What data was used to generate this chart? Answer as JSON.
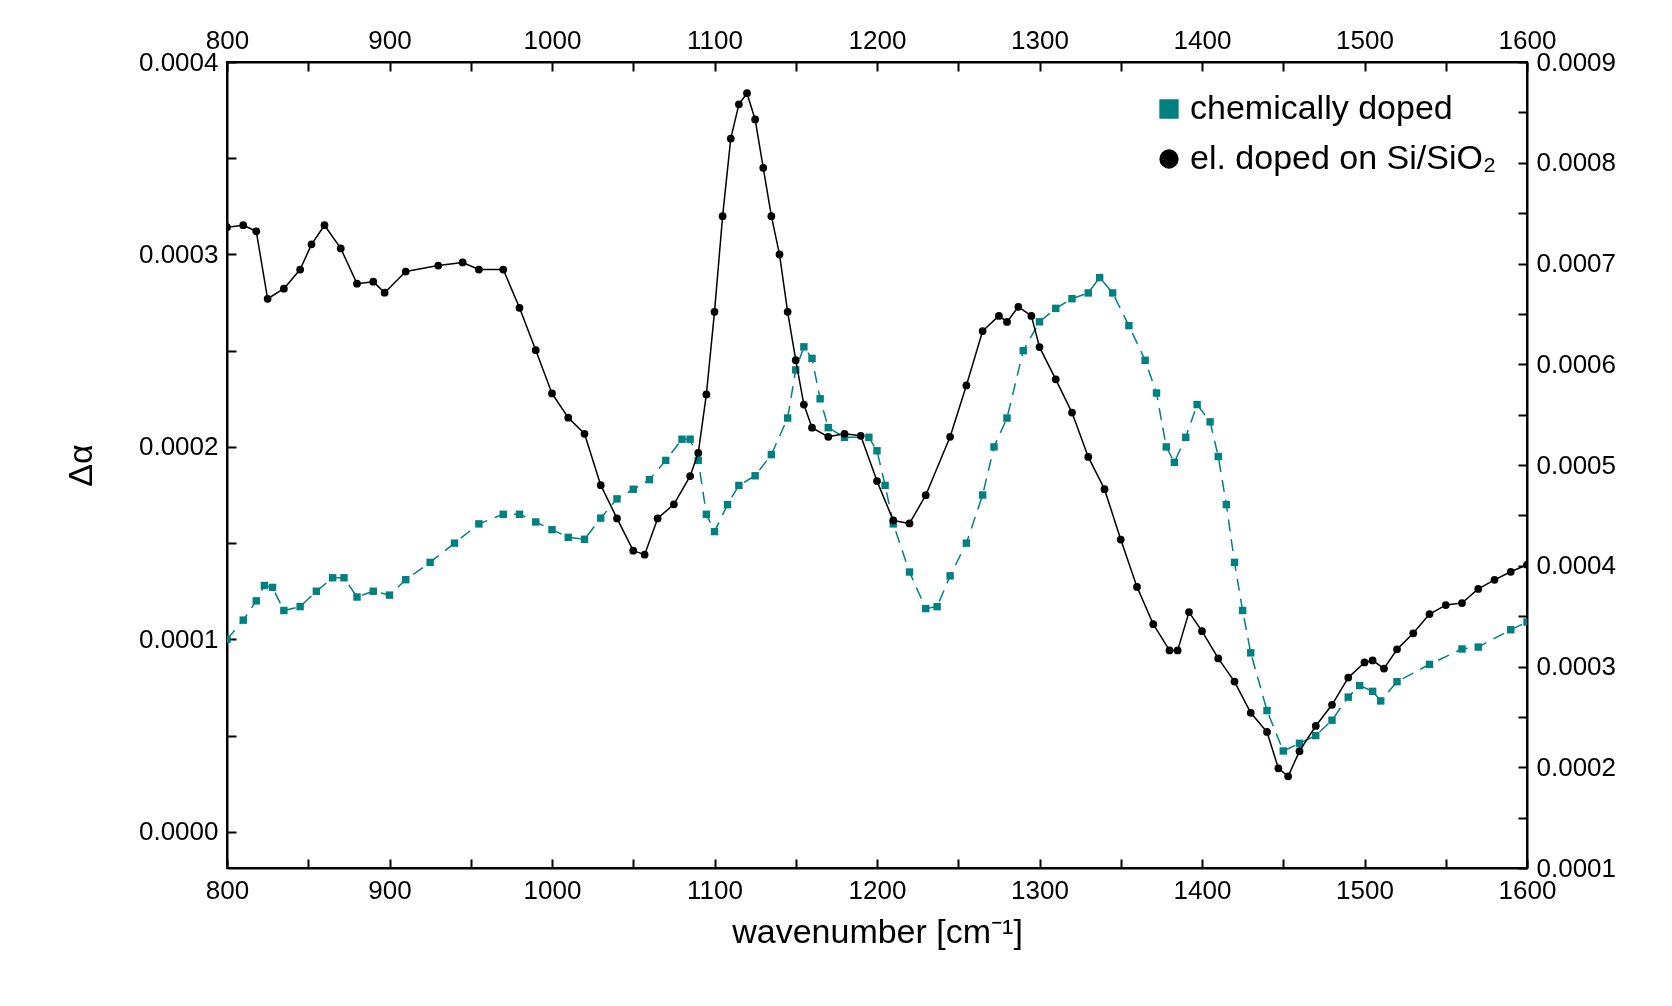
{
  "chart_data": {
    "type": "line",
    "xlabel": "wavenumber [cm⁻¹]",
    "ylabel": "Δα",
    "xlim": [
      800,
      1600
    ],
    "xticks": [
      800,
      {
        "value": 850,
        "label": null
      },
      900,
      {
        "value": 950,
        "label": null
      },
      1000,
      {
        "value": 1050,
        "label": null
      },
      1100,
      {
        "value": 1150,
        "label": null
      },
      1200,
      {
        "value": 1250,
        "label": null
      },
      1300,
      {
        "value": 1350,
        "label": null
      },
      1400,
      {
        "value": 1450,
        "label": null
      },
      1500,
      {
        "value": 1550,
        "label": null
      },
      1600
    ],
    "x2lim": [
      800,
      1600
    ],
    "x2ticks": [
      800,
      {
        "value": 850,
        "label": null
      },
      900,
      {
        "value": 950,
        "label": null
      },
      1000,
      {
        "value": 1050,
        "label": null
      },
      1100,
      {
        "value": 1150,
        "label": null
      },
      1200,
      {
        "value": 1250,
        "label": null
      },
      1300,
      {
        "value": 1350,
        "label": null
      },
      1400,
      {
        "value": 1450,
        "label": null
      },
      1500,
      {
        "value": 1550,
        "label": null
      },
      1600
    ],
    "ylim": [
      -1.88e-05,
      0.0004
    ],
    "yticks": [
      {
        "value": 0,
        "label": "0.0000"
      },
      {
        "value": 5e-05,
        "label": null
      },
      0.0001,
      {
        "value": 0.00015,
        "label": null
      },
      0.0002,
      {
        "value": 0.00025,
        "label": null
      },
      0.0003,
      {
        "value": 0.00035,
        "label": null
      },
      0.0004
    ],
    "y2lim": [
      0.0001,
      0.0009
    ],
    "y2ticks": [
      0.0001,
      {
        "value": 0.00015,
        "label": null
      },
      0.0002,
      {
        "value": 0.00025,
        "label": null
      },
      0.0003,
      {
        "value": 0.00035,
        "label": null
      },
      0.0004,
      {
        "value": 0.00045,
        "label": null
      },
      0.0005,
      {
        "value": 0.00055,
        "label": null
      },
      0.0006,
      {
        "value": 0.00065,
        "label": null
      },
      0.0007,
      {
        "value": 0.00075,
        "label": null
      },
      0.0008,
      {
        "value": 0.00085,
        "label": null
      },
      0.0009
    ],
    "legend": "top right",
    "grid": false,
    "series": [
      {
        "name": "chemically doped",
        "color": "#008080",
        "marker": "square",
        "line_style": "dashed",
        "x": [
          800,
          810,
          818,
          823,
          828,
          835,
          845,
          855,
          865,
          872,
          880,
          890,
          900,
          910,
          925,
          940,
          955,
          970,
          980,
          990,
          1000,
          1010,
          1020,
          1030,
          1040,
          1050,
          1060,
          1070,
          1080,
          1085,
          1090,
          1095,
          1100,
          1108,
          1115,
          1125,
          1135,
          1145,
          1150,
          1155,
          1160,
          1165,
          1170,
          1180,
          1195,
          1200,
          1205,
          1210,
          1220,
          1230,
          1237,
          1245,
          1255,
          1265,
          1272,
          1280,
          1290,
          1300,
          1310,
          1320,
          1330,
          1337,
          1345,
          1355,
          1365,
          1372,
          1378,
          1383,
          1390,
          1397,
          1405,
          1410,
          1415,
          1420,
          1425,
          1430,
          1440,
          1450,
          1460,
          1470,
          1480,
          1490,
          1497,
          1505,
          1510,
          1520,
          1540,
          1560,
          1570,
          1590,
          1600
        ],
        "values": [
          0.0001,
          0.00011,
          0.00012,
          0.000128,
          0.000127,
          0.000115,
          0.000117,
          0.000125,
          0.000132,
          0.000132,
          0.000122,
          0.000125,
          0.000123,
          0.000131,
          0.00014,
          0.00015,
          0.00016,
          0.000165,
          0.000165,
          0.000161,
          0.000157,
          0.000153,
          0.000152,
          0.000163,
          0.000173,
          0.000178,
          0.000183,
          0.000193,
          0.000204,
          0.000204,
          0.000193,
          0.000165,
          0.000156,
          0.00017,
          0.00018,
          0.000185,
          0.000196,
          0.000215,
          0.00024,
          0.000252,
          0.000246,
          0.000225,
          0.00021,
          0.000205,
          0.000205,
          0.000198,
          0.00018,
          0.00016,
          0.000135,
          0.000116,
          0.000117,
          0.000133,
          0.00015,
          0.000175,
          0.0002,
          0.000215,
          0.00025,
          0.000265,
          0.000272,
          0.000277,
          0.00028,
          0.000288,
          0.00028,
          0.000263,
          0.000245,
          0.000228,
          0.0002,
          0.000192,
          0.000205,
          0.000222,
          0.000213,
          0.000195,
          0.00017,
          0.00014,
          0.000115,
          9.3e-05,
          6.3e-05,
          4.2e-05,
          4.6e-05,
          5e-05,
          5.8e-05,
          7e-05,
          7.6e-05,
          7.3e-05,
          6.8e-05,
          7.8e-05,
          8.7e-05,
          9.5e-05,
          9.6e-05,
          0.000105,
          0.000109
        ]
      },
      {
        "name": "el. doped on Si/SiO₂",
        "color": "#000000",
        "marker": "circle",
        "line_style": "solid",
        "axis": "y2",
        "x": [
          800,
          810,
          818,
          825,
          835,
          845,
          852,
          860,
          870,
          880,
          890,
          897,
          910,
          930,
          945,
          955,
          970,
          980,
          990,
          1000,
          1010,
          1020,
          1030,
          1040,
          1050,
          1057,
          1065,
          1075,
          1085,
          1090,
          1095,
          1100,
          1105,
          1110,
          1115,
          1120,
          1125,
          1130,
          1135,
          1140,
          1145,
          1150,
          1155,
          1160,
          1170,
          1180,
          1190,
          1200,
          1210,
          1220,
          1230,
          1245,
          1255,
          1265,
          1275,
          1280,
          1287,
          1295,
          1300,
          1310,
          1320,
          1330,
          1340,
          1350,
          1360,
          1370,
          1380,
          1385,
          1392,
          1400,
          1410,
          1420,
          1430,
          1440,
          1447,
          1453,
          1460,
          1470,
          1480,
          1490,
          1500,
          1505,
          1512,
          1520,
          1530,
          1540,
          1550,
          1560,
          1570,
          1580,
          1590,
          1600
        ],
        "values": [
          0.000736,
          0.000738,
          0.000732,
          0.000665,
          0.000675,
          0.000694,
          0.000719,
          0.000738,
          0.000715,
          0.00068,
          0.000682,
          0.000671,
          0.000692,
          0.000698,
          0.000701,
          0.000694,
          0.000694,
          0.000656,
          0.000614,
          0.000571,
          0.000547,
          0.000531,
          0.00048,
          0.000447,
          0.000415,
          0.000411,
          0.000447,
          0.000461,
          0.000489,
          0.000512,
          0.00057,
          0.000652,
          0.000747,
          0.000824,
          0.000858,
          0.000869,
          0.000843,
          0.000795,
          0.000747,
          0.000709,
          0.000652,
          0.000604,
          0.00056,
          0.000537,
          0.000528,
          0.000531,
          0.000529,
          0.000484,
          0.000445,
          0.000442,
          0.00047,
          0.000528,
          0.000579,
          0.000633,
          0.000648,
          0.000642,
          0.000657,
          0.000648,
          0.000617,
          0.000585,
          0.000552,
          0.000508,
          0.000476,
          0.000426,
          0.000379,
          0.000342,
          0.000316,
          0.000316,
          0.000354,
          0.000335,
          0.000308,
          0.000285,
          0.000254,
          0.000235,
          0.000199,
          0.000191,
          0.000216,
          0.000241,
          0.000262,
          0.000289,
          0.000304,
          0.000306,
          0.000298,
          0.000317,
          0.000333,
          0.000352,
          0.000361,
          0.000363,
          0.000377,
          0.000386,
          0.000394,
          0.000401
        ]
      }
    ]
  }
}
